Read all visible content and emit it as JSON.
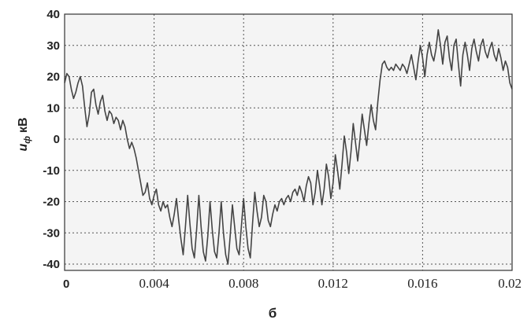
{
  "chart_data": {
    "type": "line",
    "xlabel": "",
    "ylabel_main": "u",
    "ylabel_sub": "ф",
    "ylabel_unit": "кВ",
    "caption": "б",
    "xlim": [
      0,
      0.02
    ],
    "ylim": [
      -42,
      40
    ],
    "grid": true,
    "x_ticks": [
      {
        "value": 0,
        "label": "0"
      },
      {
        "value": 0.004,
        "label": "0.004"
      },
      {
        "value": 0.008,
        "label": "0.008"
      },
      {
        "value": 0.012,
        "label": "0.012"
      },
      {
        "value": 0.016,
        "label": "0.016"
      },
      {
        "value": 0.02,
        "label": "0.02"
      }
    ],
    "y_ticks": [
      {
        "value": 40,
        "label": "40"
      },
      {
        "value": 30,
        "label": "30"
      },
      {
        "value": 20,
        "label": "20"
      },
      {
        "value": 10,
        "label": "10"
      },
      {
        "value": 0,
        "label": "0"
      },
      {
        "value": -10,
        "label": "-10"
      },
      {
        "value": -20,
        "label": "-20"
      },
      {
        "value": -30,
        "label": "-30"
      },
      {
        "value": -40,
        "label": "-40"
      }
    ],
    "line_color": "#444444",
    "background": "#f4f4f4",
    "series": [
      {
        "values": [
          [
            0.0,
            18
          ],
          [
            0.0001,
            21
          ],
          [
            0.0002,
            20
          ],
          [
            0.0003,
            16
          ],
          [
            0.0004,
            13
          ],
          [
            0.0005,
            15
          ],
          [
            0.0006,
            18
          ],
          [
            0.0007,
            20
          ],
          [
            0.0008,
            17
          ],
          [
            0.0009,
            10
          ],
          [
            0.001,
            4
          ],
          [
            0.0011,
            8
          ],
          [
            0.0012,
            15
          ],
          [
            0.0013,
            16
          ],
          [
            0.0014,
            11
          ],
          [
            0.0015,
            8
          ],
          [
            0.0016,
            12
          ],
          [
            0.0017,
            14
          ],
          [
            0.0018,
            9
          ],
          [
            0.0019,
            6
          ],
          [
            0.002,
            9
          ],
          [
            0.0021,
            8
          ],
          [
            0.0022,
            5
          ],
          [
            0.0023,
            7
          ],
          [
            0.0024,
            6
          ],
          [
            0.0025,
            3
          ],
          [
            0.0026,
            6
          ],
          [
            0.0027,
            4
          ],
          [
            0.0028,
            0
          ],
          [
            0.0029,
            -3
          ],
          [
            0.003,
            -1
          ],
          [
            0.0031,
            -3
          ],
          [
            0.0032,
            -6
          ],
          [
            0.0033,
            -10
          ],
          [
            0.0034,
            -14
          ],
          [
            0.0035,
            -18
          ],
          [
            0.0036,
            -17
          ],
          [
            0.0037,
            -14
          ],
          [
            0.0038,
            -19
          ],
          [
            0.0039,
            -21
          ],
          [
            0.004,
            -18
          ],
          [
            0.0041,
            -16
          ],
          [
            0.0042,
            -21
          ],
          [
            0.0043,
            -23
          ],
          [
            0.0044,
            -20
          ],
          [
            0.0045,
            -22
          ],
          [
            0.0046,
            -21
          ],
          [
            0.0047,
            -25
          ],
          [
            0.0048,
            -28
          ],
          [
            0.0049,
            -24
          ],
          [
            0.005,
            -19
          ],
          [
            0.0051,
            -26
          ],
          [
            0.0052,
            -32
          ],
          [
            0.0053,
            -37
          ],
          [
            0.0054,
            -28
          ],
          [
            0.0055,
            -18
          ],
          [
            0.0056,
            -27
          ],
          [
            0.0057,
            -35
          ],
          [
            0.0058,
            -38
          ],
          [
            0.0059,
            -29
          ],
          [
            0.006,
            -18
          ],
          [
            0.0061,
            -28
          ],
          [
            0.0062,
            -36
          ],
          [
            0.0063,
            -39
          ],
          [
            0.0064,
            -31
          ],
          [
            0.0065,
            -20
          ],
          [
            0.0066,
            -29
          ],
          [
            0.0067,
            -36
          ],
          [
            0.0068,
            -38
          ],
          [
            0.0069,
            -30
          ],
          [
            0.007,
            -20
          ],
          [
            0.0071,
            -30
          ],
          [
            0.0072,
            -37
          ],
          [
            0.0073,
            -40
          ],
          [
            0.0074,
            -31
          ],
          [
            0.0075,
            -21
          ],
          [
            0.0076,
            -28
          ],
          [
            0.0077,
            -35
          ],
          [
            0.0078,
            -37
          ],
          [
            0.0079,
            -28
          ],
          [
            0.008,
            -19
          ],
          [
            0.0081,
            -28
          ],
          [
            0.0082,
            -35
          ],
          [
            0.0083,
            -38
          ],
          [
            0.0084,
            -27
          ],
          [
            0.0085,
            -17
          ],
          [
            0.0086,
            -23
          ],
          [
            0.0087,
            -28
          ],
          [
            0.0088,
            -25
          ],
          [
            0.0089,
            -18
          ],
          [
            0.009,
            -20
          ],
          [
            0.0091,
            -26
          ],
          [
            0.0092,
            -28
          ],
          [
            0.0093,
            -24
          ],
          [
            0.0094,
            -21
          ],
          [
            0.0095,
            -23
          ],
          [
            0.0096,
            -20
          ],
          [
            0.0097,
            -19
          ],
          [
            0.0098,
            -21
          ],
          [
            0.0099,
            -19
          ],
          [
            0.01,
            -18
          ],
          [
            0.0101,
            -20
          ],
          [
            0.0102,
            -17
          ],
          [
            0.0103,
            -16
          ],
          [
            0.0104,
            -18
          ],
          [
            0.0105,
            -15
          ],
          [
            0.0106,
            -17
          ],
          [
            0.0107,
            -20
          ],
          [
            0.0108,
            -15
          ],
          [
            0.0109,
            -12
          ],
          [
            0.011,
            -14
          ],
          [
            0.0111,
            -21
          ],
          [
            0.0112,
            -17
          ],
          [
            0.0113,
            -10
          ],
          [
            0.0114,
            -15
          ],
          [
            0.0115,
            -21
          ],
          [
            0.0116,
            -16
          ],
          [
            0.0117,
            -8
          ],
          [
            0.0118,
            -12
          ],
          [
            0.0119,
            -19
          ],
          [
            0.012,
            -14
          ],
          [
            0.0121,
            -5
          ],
          [
            0.0122,
            -10
          ],
          [
            0.0123,
            -16
          ],
          [
            0.0124,
            -8
          ],
          [
            0.0125,
            1
          ],
          [
            0.0126,
            -4
          ],
          [
            0.0127,
            -11
          ],
          [
            0.0128,
            -4
          ],
          [
            0.0129,
            5
          ],
          [
            0.013,
            -1
          ],
          [
            0.0131,
            -7
          ],
          [
            0.0132,
            0
          ],
          [
            0.0133,
            8
          ],
          [
            0.0134,
            3
          ],
          [
            0.0135,
            -2
          ],
          [
            0.0136,
            5
          ],
          [
            0.0137,
            11
          ],
          [
            0.0138,
            6
          ],
          [
            0.0139,
            3
          ],
          [
            0.014,
            12
          ],
          [
            0.0141,
            19
          ],
          [
            0.0142,
            24
          ],
          [
            0.0143,
            25
          ],
          [
            0.0144,
            23
          ],
          [
            0.0145,
            22
          ],
          [
            0.0146,
            23
          ],
          [
            0.0147,
            22
          ],
          [
            0.0148,
            24
          ],
          [
            0.0149,
            23
          ],
          [
            0.015,
            22
          ],
          [
            0.0151,
            24
          ],
          [
            0.0152,
            23
          ],
          [
            0.0153,
            21
          ],
          [
            0.0154,
            24
          ],
          [
            0.0155,
            27
          ],
          [
            0.0156,
            23
          ],
          [
            0.0157,
            19
          ],
          [
            0.0158,
            25
          ],
          [
            0.0159,
            30
          ],
          [
            0.016,
            26
          ],
          [
            0.0161,
            20
          ],
          [
            0.0162,
            27
          ],
          [
            0.0163,
            31
          ],
          [
            0.0164,
            27
          ],
          [
            0.0165,
            25
          ],
          [
            0.0166,
            29
          ],
          [
            0.0167,
            35
          ],
          [
            0.0168,
            30
          ],
          [
            0.0169,
            24
          ],
          [
            0.017,
            31
          ],
          [
            0.0171,
            33
          ],
          [
            0.0172,
            26
          ],
          [
            0.0173,
            22
          ],
          [
            0.0174,
            30
          ],
          [
            0.0175,
            32
          ],
          [
            0.0176,
            24
          ],
          [
            0.0177,
            17
          ],
          [
            0.0178,
            27
          ],
          [
            0.0179,
            31
          ],
          [
            0.018,
            27
          ],
          [
            0.0181,
            22
          ],
          [
            0.0182,
            29
          ],
          [
            0.0183,
            32
          ],
          [
            0.0184,
            28
          ],
          [
            0.0185,
            25
          ],
          [
            0.0186,
            30
          ],
          [
            0.0187,
            32
          ],
          [
            0.0188,
            28
          ],
          [
            0.0189,
            26
          ],
          [
            0.019,
            29
          ],
          [
            0.0191,
            31
          ],
          [
            0.0192,
            27
          ],
          [
            0.0193,
            25
          ],
          [
            0.0194,
            29
          ],
          [
            0.0195,
            26
          ],
          [
            0.0196,
            22
          ],
          [
            0.0197,
            25
          ],
          [
            0.0198,
            23
          ],
          [
            0.0199,
            18
          ],
          [
            0.02,
            16
          ]
        ]
      }
    ]
  }
}
